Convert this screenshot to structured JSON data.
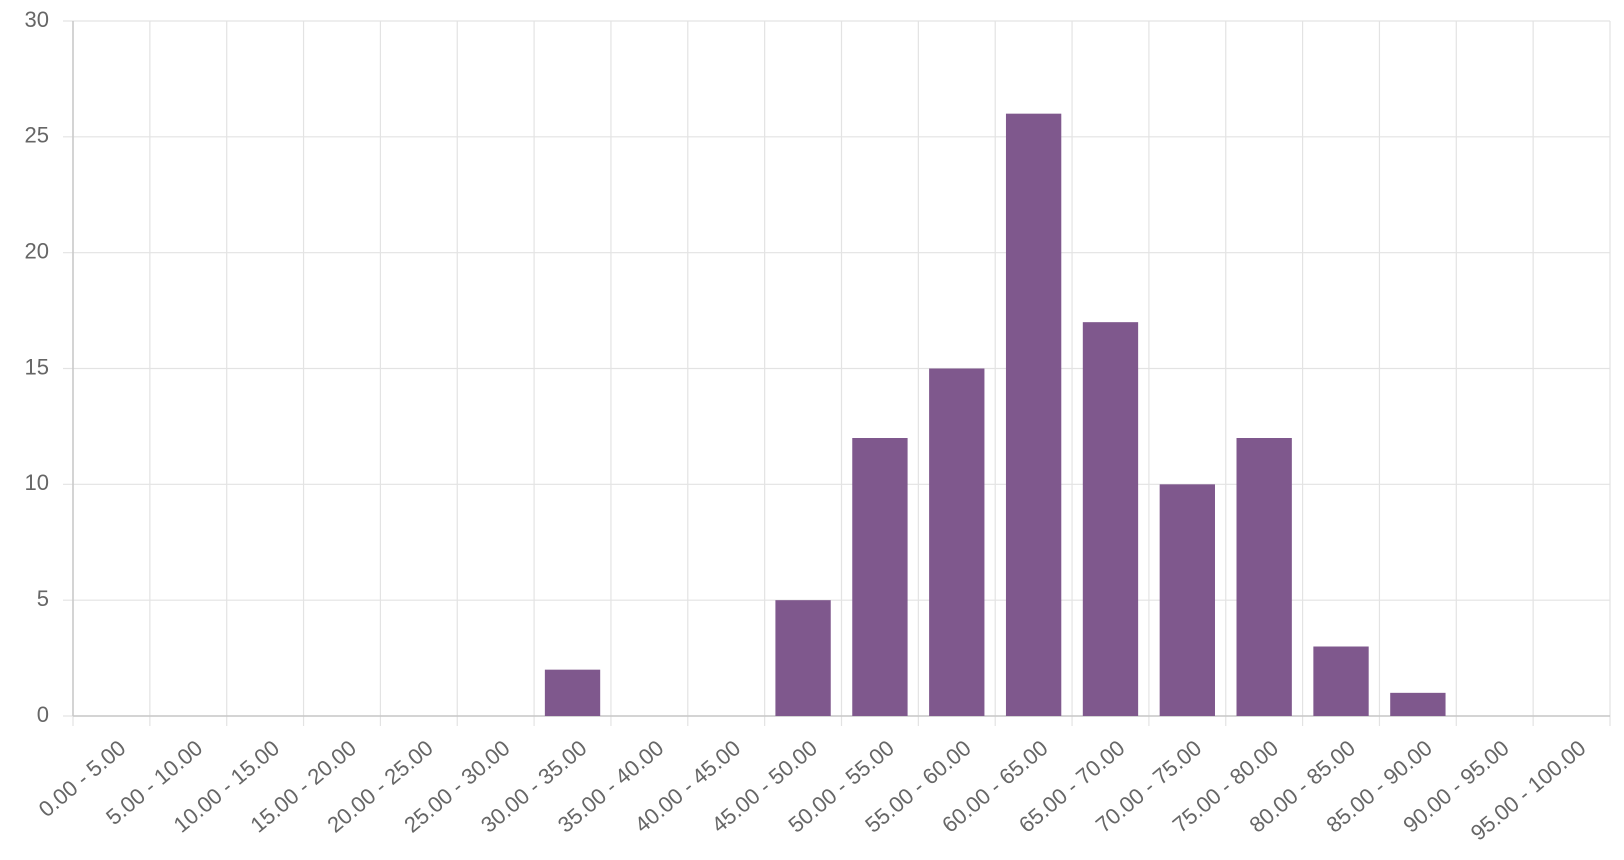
{
  "chart_data": {
    "type": "bar",
    "categories": [
      "0.00 - 5.00",
      "5.00 - 10.00",
      "10.00 - 15.00",
      "15.00 - 20.00",
      "20.00 - 25.00",
      "25.00 - 30.00",
      "30.00 - 35.00",
      "35.00 - 40.00",
      "40.00 - 45.00",
      "45.00 - 50.00",
      "50.00 - 55.00",
      "55.00 - 60.00",
      "60.00 - 65.00",
      "65.00 - 70.00",
      "70.00 - 75.00",
      "75.00 - 80.00",
      "80.00 - 85.00",
      "85.00 - 90.00",
      "90.00 - 95.00",
      "95.00 - 100.00"
    ],
    "values": [
      0,
      0,
      0,
      0,
      0,
      0,
      2,
      0,
      0,
      5,
      12,
      15,
      26,
      17,
      10,
      12,
      3,
      1,
      0,
      0
    ],
    "color": "#7f588d",
    "ylim": [
      0,
      30
    ],
    "yticks": [
      0,
      5,
      10,
      15,
      20,
      25,
      30
    ],
    "grid": true
  }
}
